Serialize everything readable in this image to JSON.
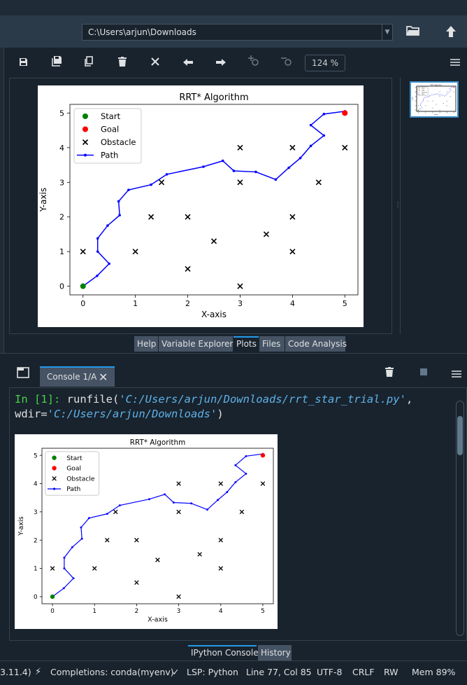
{
  "path_bar": {
    "path": "C:\\Users\\arjun\\Downloads"
  },
  "plots_toolbar": {
    "zoom": "124 %"
  },
  "plots_tabs": [
    "Help",
    "Variable Explorer",
    "Plots",
    "Files",
    "Code Analysis"
  ],
  "plots_active_tab": "Plots",
  "console": {
    "tab_label": "Console 1/A",
    "prompt": "In [1]:",
    "command": "runfile(",
    "arg1": "'C:/Users/arjun/Downloads/rrt_star_trial.py'",
    "sep": ",",
    "wdir_label": "wdir=",
    "arg2": "'C:/Users/arjun/Downloads'",
    "close_paren": ")"
  },
  "console_tabs": [
    "IPython Console",
    "History"
  ],
  "status_bar": {
    "version": "3.11.4)",
    "completions": "Completions: conda(myenv)",
    "lsp": "LSP: Python",
    "position": "Line 77, Col 85",
    "encoding": "UTF-8",
    "eol": "CRLF",
    "rw": "RW",
    "mem": "Mem 89%"
  },
  "chart_data": {
    "type": "scatter",
    "title": "RRT* Algorithm",
    "xlabel": "X-axis",
    "ylabel": "Y-axis",
    "xlim": [
      -0.25,
      5.25
    ],
    "ylim": [
      -0.25,
      5.25
    ],
    "xticks": [
      0,
      1,
      2,
      3,
      4,
      5
    ],
    "yticks": [
      0,
      1,
      2,
      3,
      4,
      5
    ],
    "legend_position": "top-left",
    "legend": [
      "Start",
      "Goal",
      "Obstacle",
      "Path"
    ],
    "start": [
      0,
      0
    ],
    "goal": [
      5,
      5
    ],
    "obstacles": [
      [
        0,
        1
      ],
      [
        1,
        1
      ],
      [
        1.3,
        2
      ],
      [
        1.5,
        3
      ],
      [
        2,
        2
      ],
      [
        2,
        0.5
      ],
      [
        2.5,
        1.3
      ],
      [
        3,
        4
      ],
      [
        3,
        3
      ],
      [
        3,
        0
      ],
      [
        3.5,
        1.5
      ],
      [
        4,
        4
      ],
      [
        4,
        2
      ],
      [
        4,
        1
      ],
      [
        4.5,
        3
      ],
      [
        5,
        4
      ]
    ],
    "path": [
      [
        0,
        0
      ],
      [
        0.27,
        0.3
      ],
      [
        0.5,
        0.65
      ],
      [
        0.28,
        1
      ],
      [
        0.28,
        1.38
      ],
      [
        0.47,
        1.75
      ],
      [
        0.7,
        2.05
      ],
      [
        0.68,
        2.45
      ],
      [
        0.87,
        2.78
      ],
      [
        1.3,
        2.93
      ],
      [
        1.6,
        3.23
      ],
      [
        2.3,
        3.45
      ],
      [
        2.67,
        3.62
      ],
      [
        2.88,
        3.33
      ],
      [
        3.3,
        3.3
      ],
      [
        3.68,
        3.08
      ],
      [
        3.93,
        3.42
      ],
      [
        4.15,
        3.7
      ],
      [
        4.35,
        4.05
      ],
      [
        4.6,
        4.35
      ],
      [
        4.35,
        4.65
      ],
      [
        4.6,
        4.97
      ],
      [
        5,
        5.05
      ]
    ],
    "colors": {
      "start": "#008000",
      "goal": "#ff0000",
      "obstacle": "#000000",
      "path": "#0000ff"
    }
  }
}
